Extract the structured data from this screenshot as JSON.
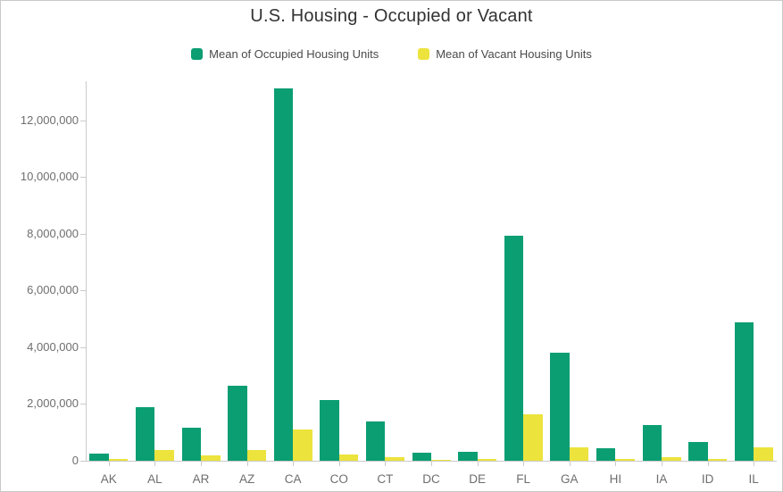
{
  "title": "U.S. Housing - Occupied or Vacant",
  "legend": {
    "items": [
      {
        "label": "Mean of Occupied Housing Units",
        "color": "#0b9e73"
      },
      {
        "label": "Mean of Vacant Housing Units",
        "color": "#ece33d"
      }
    ]
  },
  "colors": {
    "occupied_bar": "#0b9e73",
    "vacant_bar": "#ece33d",
    "title_text": "#323232",
    "legend_text": "#4a4a4a",
    "axis_text": "#6e6e6e",
    "axis_line": "#cacaca"
  },
  "chart_data": {
    "type": "bar",
    "title": "U.S. Housing - Occupied or Vacant",
    "xlabel": "",
    "ylabel": "",
    "grid": false,
    "legend_position": "top",
    "categories": [
      "AK",
      "AL",
      "AR",
      "AZ",
      "CA",
      "CO",
      "CT",
      "DC",
      "DE",
      "FL",
      "GA",
      "HI",
      "IA",
      "ID",
      "IL"
    ],
    "series": [
      {
        "name": "Mean of Occupied Housing Units",
        "color": "#0b9e73",
        "values": [
          240000,
          1880000,
          1160000,
          2630000,
          13120000,
          2140000,
          1380000,
          280000,
          330000,
          7930000,
          3820000,
          450000,
          1250000,
          650000,
          4890000
        ]
      },
      {
        "name": "Mean of Vacant Housing Units",
        "color": "#ece33d",
        "values": [
          55000,
          375000,
          190000,
          370000,
          1100000,
          210000,
          120000,
          25000,
          55000,
          1630000,
          470000,
          60000,
          130000,
          75000,
          475000
        ]
      }
    ],
    "ylim": [
      0,
      13375000
    ],
    "yticks": [
      0,
      2000000,
      4000000,
      6000000,
      8000000,
      10000000,
      12000000
    ]
  }
}
